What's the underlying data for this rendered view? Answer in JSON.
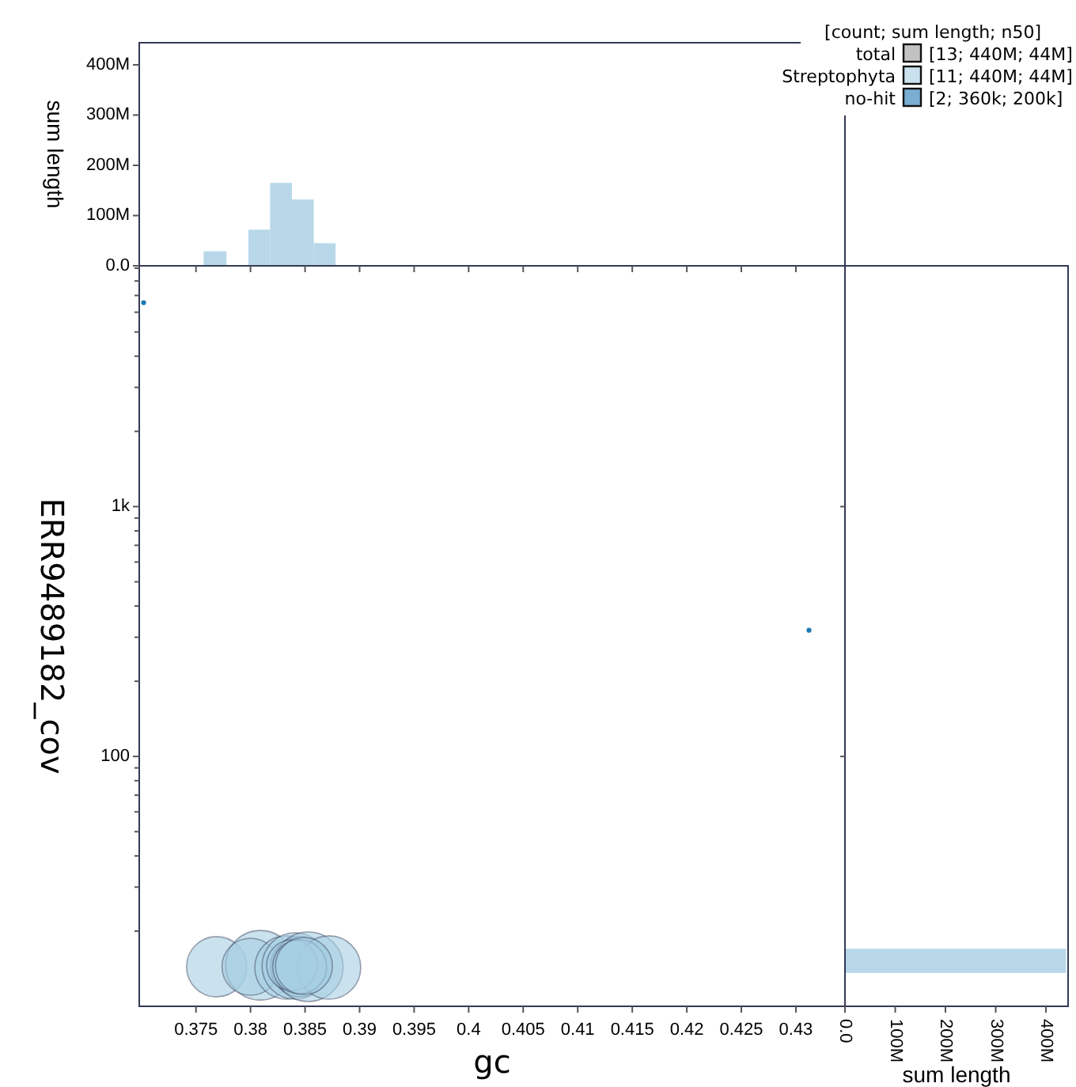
{
  "chart_data": [
    {
      "type": "bubble",
      "xlabel": "gc",
      "ylabel": "ERR9489182_cov",
      "log": "y",
      "xlim": [
        0.3698,
        0.4345
      ],
      "ylim": [
        10,
        9200
      ],
      "xticks": [
        0.375,
        0.38,
        0.385,
        0.39,
        0.395,
        0.4,
        0.405,
        0.41,
        0.415,
        0.42,
        0.425,
        0.43
      ],
      "yticks": [
        {
          "value": 20,
          "label": null
        },
        {
          "value": 30,
          "label": null
        },
        {
          "value": 40,
          "label": null
        },
        {
          "value": 50,
          "label": null
        },
        {
          "value": 60,
          "label": null
        },
        {
          "value": 70,
          "label": null
        },
        {
          "value": 80,
          "label": null
        },
        {
          "value": 90,
          "label": null
        },
        {
          "value": 100,
          "label": "100"
        },
        {
          "value": 200,
          "label": null
        },
        {
          "value": 300,
          "label": null
        },
        {
          "value": 400,
          "label": null
        },
        {
          "value": 500,
          "label": null
        },
        {
          "value": 600,
          "label": null
        },
        {
          "value": 700,
          "label": null
        },
        {
          "value": 800,
          "label": null
        },
        {
          "value": 900,
          "label": null
        },
        {
          "value": 1000,
          "label": "1k"
        },
        {
          "value": 2000,
          "label": null
        },
        {
          "value": 3000,
          "label": null
        },
        {
          "value": 4000,
          "label": null
        },
        {
          "value": 5000,
          "label": null
        },
        {
          "value": 6000,
          "label": null
        },
        {
          "value": 7000,
          "label": null
        },
        {
          "value": 8000,
          "label": null
        },
        {
          "value": 9000,
          "label": null
        }
      ],
      "legend": "top right",
      "legend_title": "[count; sum length; n50]",
      "annotations": [
        "[13; 440M; 44M]",
        "[11; 440M; 44M]",
        "[2; 360k; 200k]"
      ],
      "series": [
        {
          "name": "total",
          "color": "#999999"
        },
        {
          "name": "Streptophyta",
          "color": "#a6cee3",
          "x": [
            0.3769,
            0.3809,
            0.38,
            0.3833,
            0.3841,
            0.3846,
            0.3853,
            0.3872,
            0.3838,
            0.3845,
            0.3849
          ],
          "values": [
            14.4,
            14.6,
            14.4,
            14.3,
            14.5,
            14.4,
            14.4,
            14.3,
            14.6,
            14.4,
            14.5
          ],
          "sizes": [
            0.75,
            1,
            0.67,
            0.83,
            0.91,
            0.75,
            1,
            0.83,
            0.53,
            0.6,
            0.67
          ]
        },
        {
          "name": "no-hit",
          "color": "#1f78b4",
          "x": [
            0.3702,
            0.4312
          ],
          "values": [
            6550,
            320
          ],
          "sizes": [
            0.005,
            0.005
          ]
        }
      ]
    },
    {
      "type": "histogram",
      "ylabel": "sum length",
      "color": "#a6cee3",
      "xlim": [
        0.3698,
        0.4345
      ],
      "ylim": [
        0,
        444000000
      ],
      "xticks": [
        {
          "value": 0.375,
          "label": null
        },
        {
          "value": 0.38,
          "label": null
        },
        {
          "value": 0.385,
          "label": null
        },
        {
          "value": 0.39,
          "label": null
        },
        {
          "value": 0.395,
          "label": null
        },
        {
          "value": 0.4,
          "label": null
        },
        {
          "value": 0.405,
          "label": null
        },
        {
          "value": 0.41,
          "label": null
        },
        {
          "value": 0.415,
          "label": null
        },
        {
          "value": 0.42,
          "label": null
        },
        {
          "value": 0.425,
          "label": null
        },
        {
          "value": 0.43,
          "label": null
        }
      ],
      "yticks": [
        {
          "value": 0,
          "label": "0.0"
        },
        {
          "value": 100000000,
          "label": "100M"
        },
        {
          "value": 200000000,
          "label": "200M"
        },
        {
          "value": 300000000,
          "label": "300M"
        },
        {
          "value": 400000000,
          "label": "400M"
        }
      ],
      "tick_labels": "y",
      "bins": [
        0.3757,
        0.3778,
        0.3798,
        0.3818,
        0.3838,
        0.3858,
        0.3878
      ],
      "values": [
        29000000,
        0,
        72000000,
        165000000,
        132000000,
        45000000
      ]
    },
    {
      "type": "histogram",
      "orientation": "horizontal",
      "xlabel": "sum length",
      "color": "#a6cee3",
      "log": "y",
      "ylim": [
        10,
        9200
      ],
      "xlim": [
        0,
        444000000
      ],
      "xticks": [
        {
          "value": 0,
          "label": "0.0"
        },
        {
          "value": 100000000,
          "label": "100M"
        },
        {
          "value": 200000000,
          "label": "200M"
        },
        {
          "value": 300000000,
          "label": "300M"
        },
        {
          "value": 400000000,
          "label": "400M"
        }
      ],
      "yticks": [
        {
          "value": 100,
          "label": null
        },
        {
          "value": 1000,
          "label": null
        }
      ],
      "tick_labels": "x",
      "bins": [
        13.6,
        17
      ],
      "values": [
        440000000
      ]
    }
  ]
}
